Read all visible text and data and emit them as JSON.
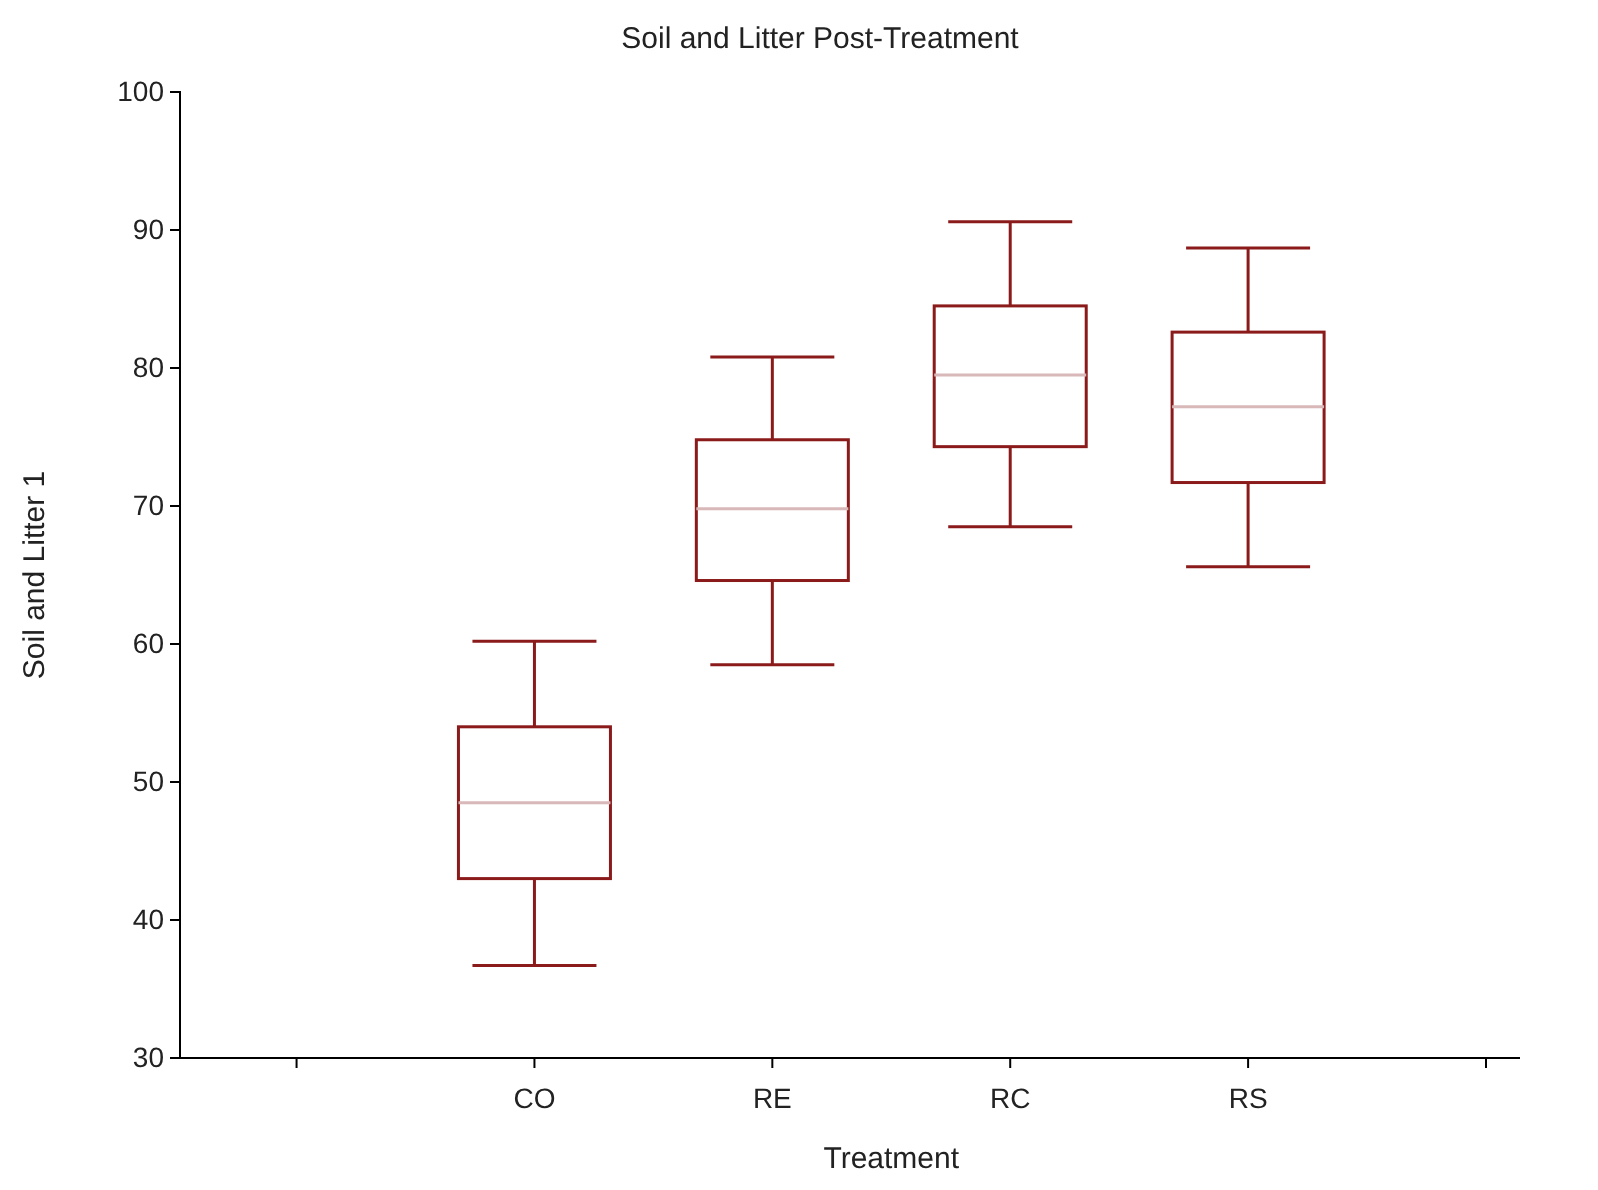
{
  "chart_data": {
    "type": "box",
    "title": "Soil and Litter Post-Treatment",
    "xlabel": "Treatment",
    "ylabel": "Soil and Litter 1",
    "categories": [
      null,
      "CO",
      "RE",
      "RC",
      "RS",
      null
    ],
    "boxes": [
      null,
      {
        "low": 36.7,
        "q1": 43,
        "median": 48.5,
        "q3": 54,
        "high": 60.2
      },
      {
        "low": 58.5,
        "q1": 64.6,
        "median": 69.8,
        "q3": 74.8,
        "high": 80.8
      },
      {
        "low": 68.5,
        "q1": 74.3,
        "median": 79.5,
        "q3": 84.5,
        "high": 90.6
      },
      {
        "low": 65.6,
        "q1": 71.7,
        "median": 77.2,
        "q3": 82.6,
        "high": 88.7
      },
      null
    ],
    "color": "#8b1a1a",
    "ylim": [
      30,
      100
    ],
    "yticks": [
      30,
      40,
      50,
      60,
      70,
      80,
      90,
      100
    ],
    "grid": false
  }
}
